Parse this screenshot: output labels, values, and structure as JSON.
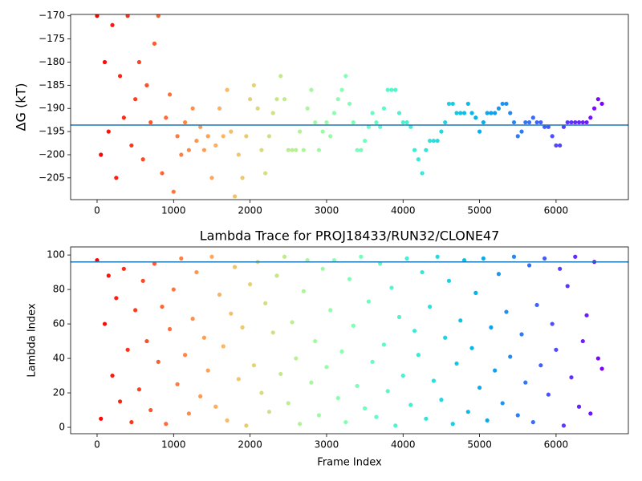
{
  "chart_data": [
    {
      "type": "scatter",
      "ylabel": "ΔG (kT)",
      "colormap": "rainbow_r",
      "hline": -193.6,
      "hline_color": "#1f77b4",
      "xlim": [
        -346,
        6945
      ],
      "ylim": [
        -209.7,
        -169.7
      ],
      "xticks": [
        0,
        1000,
        2000,
        3000,
        4000,
        5000,
        6000
      ],
      "yticks": [
        {
          "value": -205,
          "label": "−205"
        },
        {
          "value": -200,
          "label": "−200"
        },
        {
          "value": -195,
          "label": "−195"
        },
        {
          "value": -190,
          "label": "−190"
        },
        {
          "value": -185,
          "label": "−185"
        },
        {
          "value": -180,
          "label": "−180"
        },
        {
          "value": -175,
          "label": "−175"
        },
        {
          "value": -170,
          "label": "−170"
        }
      ],
      "x": [
        0,
        50,
        100,
        150,
        200,
        250,
        300,
        350,
        400,
        450,
        500,
        550,
        600,
        650,
        700,
        750,
        800,
        850,
        900,
        950,
        1000,
        1050,
        1100,
        1150,
        1200,
        1250,
        1300,
        1350,
        1400,
        1450,
        1500,
        1550,
        1600,
        1650,
        1700,
        1750,
        1800,
        1850,
        1900,
        1950,
        2000,
        2050,
        2100,
        2150,
        2200,
        2250,
        2300,
        2350,
        2400,
        2450,
        2500,
        2550,
        2600,
        2650,
        2700,
        2750,
        2800,
        2850,
        2900,
        2950,
        3000,
        3050,
        3100,
        3150,
        3200,
        3250,
        3300,
        3350,
        3400,
        3450,
        3500,
        3550,
        3600,
        3650,
        3700,
        3750,
        3800,
        3850,
        3900,
        3950,
        4000,
        4050,
        4100,
        4150,
        4200,
        4250,
        4300,
        4350,
        4400,
        4450,
        4500,
        4550,
        4600,
        4650,
        4700,
        4750,
        4800,
        4850,
        4900,
        4950,
        5000,
        5050,
        5100,
        5150,
        5200,
        5250,
        5300,
        5350,
        5400,
        5450,
        5500,
        5550,
        5600,
        5650,
        5700,
        5750,
        5800,
        5850,
        5900,
        5950,
        6000,
        6050,
        6100,
        6150,
        6200,
        6250,
        6300,
        6350,
        6400,
        6450,
        6500,
        6550,
        6600
      ],
      "values": [
        -170,
        -200,
        -180,
        -195,
        -172,
        -205,
        -183,
        -192,
        -170,
        -198,
        -188,
        -180,
        -201,
        -185,
        -193,
        -176,
        -170,
        -204,
        -192,
        -187,
        -208,
        -196,
        -200,
        -193,
        -199,
        -190,
        -197,
        -194,
        -199,
        -196,
        -205,
        -198,
        -190,
        -196,
        -186,
        -195,
        -209,
        -200,
        -205,
        -196,
        -188,
        -185,
        -190,
        -199,
        -204,
        -196,
        -191,
        -188,
        -183,
        -188,
        -199,
        -199,
        -199,
        -195,
        -199,
        -190,
        -186,
        -193,
        -199,
        -195,
        -193,
        -196,
        -191,
        -188,
        -186,
        -183,
        -189,
        -193,
        -199,
        -199,
        -197,
        -194,
        -191,
        -193,
        -194,
        -190,
        -186,
        -186,
        -186,
        -191,
        -193,
        -193,
        -194,
        -199,
        -201,
        -204,
        -199,
        -197,
        -197,
        -197,
        -195,
        -193,
        -189,
        -189,
        -191,
        -191,
        -191,
        -189,
        -191,
        -192,
        -195,
        -193,
        -191,
        -191,
        -191,
        -190,
        -189,
        -189,
        -191,
        -193,
        -196,
        -195,
        -193,
        -193,
        -192,
        -193,
        -193,
        -194,
        -194,
        -196,
        -198,
        -198,
        -194,
        -193,
        -193,
        -193,
        -193,
        -193,
        -193,
        -192,
        -190,
        -188,
        -189
      ]
    },
    {
      "type": "scatter",
      "title": "Lambda Trace for PROJ18433/RUN32/CLONE47",
      "xlabel": "Frame Index",
      "ylabel": "Lambda Index",
      "colormap": "rainbow_r",
      "hline": 96,
      "hline_color": "#1f77b4",
      "xlim": [
        -346,
        6945
      ],
      "ylim": [
        -3.7,
        104.7
      ],
      "xticks": [
        0,
        1000,
        2000,
        3000,
        4000,
        5000,
        6000
      ],
      "yticks": [
        0,
        20,
        40,
        60,
        80,
        100
      ],
      "x": [
        0,
        50,
        100,
        150,
        200,
        250,
        300,
        350,
        400,
        450,
        500,
        550,
        600,
        650,
        700,
        750,
        800,
        850,
        900,
        950,
        1000,
        1050,
        1100,
        1150,
        1200,
        1250,
        1300,
        1350,
        1400,
        1450,
        1500,
        1550,
        1600,
        1650,
        1700,
        1750,
        1800,
        1850,
        1900,
        1950,
        2000,
        2050,
        2100,
        2150,
        2200,
        2250,
        2300,
        2350,
        2400,
        2450,
        2500,
        2550,
        2600,
        2650,
        2700,
        2750,
        2800,
        2850,
        2900,
        2950,
        3000,
        3050,
        3100,
        3150,
        3200,
        3250,
        3300,
        3350,
        3400,
        3450,
        3500,
        3550,
        3600,
        3650,
        3700,
        3750,
        3800,
        3850,
        3900,
        3950,
        4000,
        4050,
        4100,
        4150,
        4200,
        4250,
        4300,
        4350,
        4400,
        4450,
        4500,
        4550,
        4600,
        4650,
        4700,
        4750,
        4800,
        4850,
        4900,
        4950,
        5000,
        5050,
        5100,
        5150,
        5200,
        5250,
        5300,
        5350,
        5400,
        5450,
        5500,
        5550,
        5600,
        5650,
        5700,
        5750,
        5800,
        5850,
        5900,
        5950,
        6000,
        6050,
        6100,
        6150,
        6200,
        6250,
        6300,
        6350,
        6400,
        6450,
        6500,
        6550,
        6600
      ],
      "values": [
        97,
        5,
        60,
        88,
        30,
        75,
        15,
        92,
        45,
        3,
        68,
        22,
        85,
        50,
        10,
        95,
        38,
        70,
        2,
        57,
        80,
        25,
        98,
        42,
        8,
        63,
        90,
        18,
        52,
        33,
        99,
        12,
        77,
        47,
        4,
        66,
        93,
        28,
        58,
        1,
        83,
        36,
        96,
        20,
        72,
        9,
        55,
        88,
        31,
        99,
        14,
        61,
        40,
        2,
        79,
        97,
        26,
        50,
        7,
        92,
        35,
        68,
        97,
        17,
        44,
        3,
        86,
        59,
        24,
        99,
        11,
        73,
        38,
        6,
        95,
        48,
        21,
        81,
        1,
        64,
        30,
        98,
        13,
        56,
        42,
        90,
        5,
        70,
        27,
        99,
        16,
        52,
        85,
        2,
        37,
        62,
        97,
        9,
        46,
        78,
        23,
        98,
        4,
        58,
        33,
        89,
        14,
        67,
        41,
        99,
        7,
        54,
        26,
        94,
        3,
        71,
        36,
        98,
        19,
        60,
        45,
        92,
        1,
        82,
        29,
        99,
        12,
        50,
        65,
        8,
        96,
        40,
        34
      ]
    }
  ]
}
